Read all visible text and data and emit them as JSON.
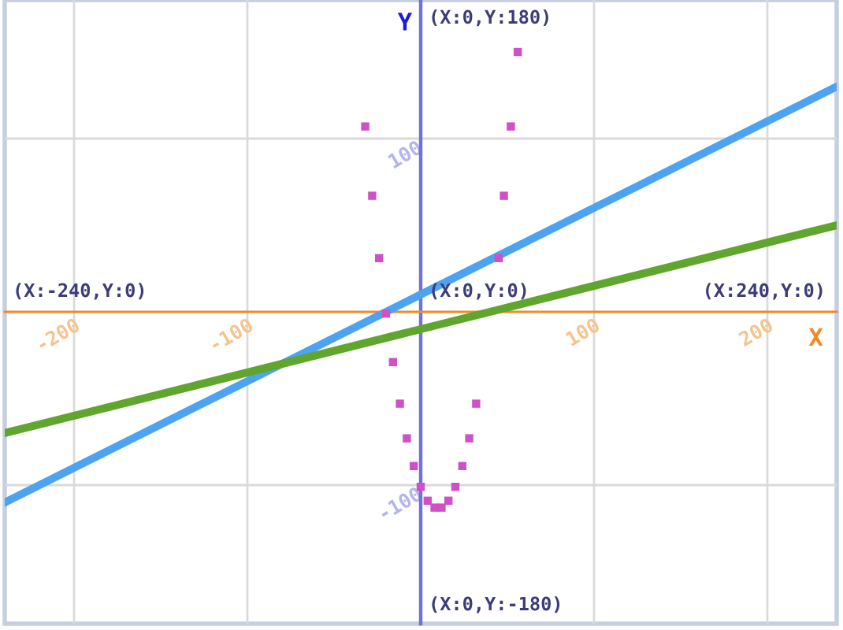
{
  "chart_data": {
    "type": "line",
    "xlabel": "X",
    "ylabel": "Y",
    "xlim": [
      -240,
      240
    ],
    "ylim": [
      -180,
      180
    ],
    "xticks": [
      -200,
      -100,
      100,
      200
    ],
    "yticks": [
      -100,
      100
    ],
    "grid": true,
    "annotations": [
      "(X:0,Y:180)",
      "(X:-240,Y:0)",
      "(X:0,Y:0)",
      "(X:240,Y:0)",
      "(X:0,Y:-180)"
    ],
    "series": [
      {
        "color": "#4ca3f2",
        "x": [
          -240,
          0,
          240
        ],
        "values": [
          -110,
          10,
          130
        ]
      },
      {
        "color": "#5fa52e",
        "x": [
          -240,
          0,
          240
        ],
        "values": [
          -70,
          -10,
          50
        ]
      },
      {
        "type": "scatter",
        "marker": "square",
        "color": "#d050c8",
        "x": [
          -32,
          -28,
          -24,
          -20,
          -16,
          -12,
          -8,
          -4,
          0,
          4,
          8,
          12,
          16,
          20,
          24,
          28,
          32,
          45,
          48,
          52,
          56
        ],
        "values": [
          107,
          67,
          31,
          -1,
          -29,
          -53,
          -73,
          -89,
          -101,
          -109,
          -113,
          -113,
          -109,
          -101,
          -89,
          -73,
          -53,
          31,
          67,
          107,
          150
        ]
      }
    ]
  }
}
